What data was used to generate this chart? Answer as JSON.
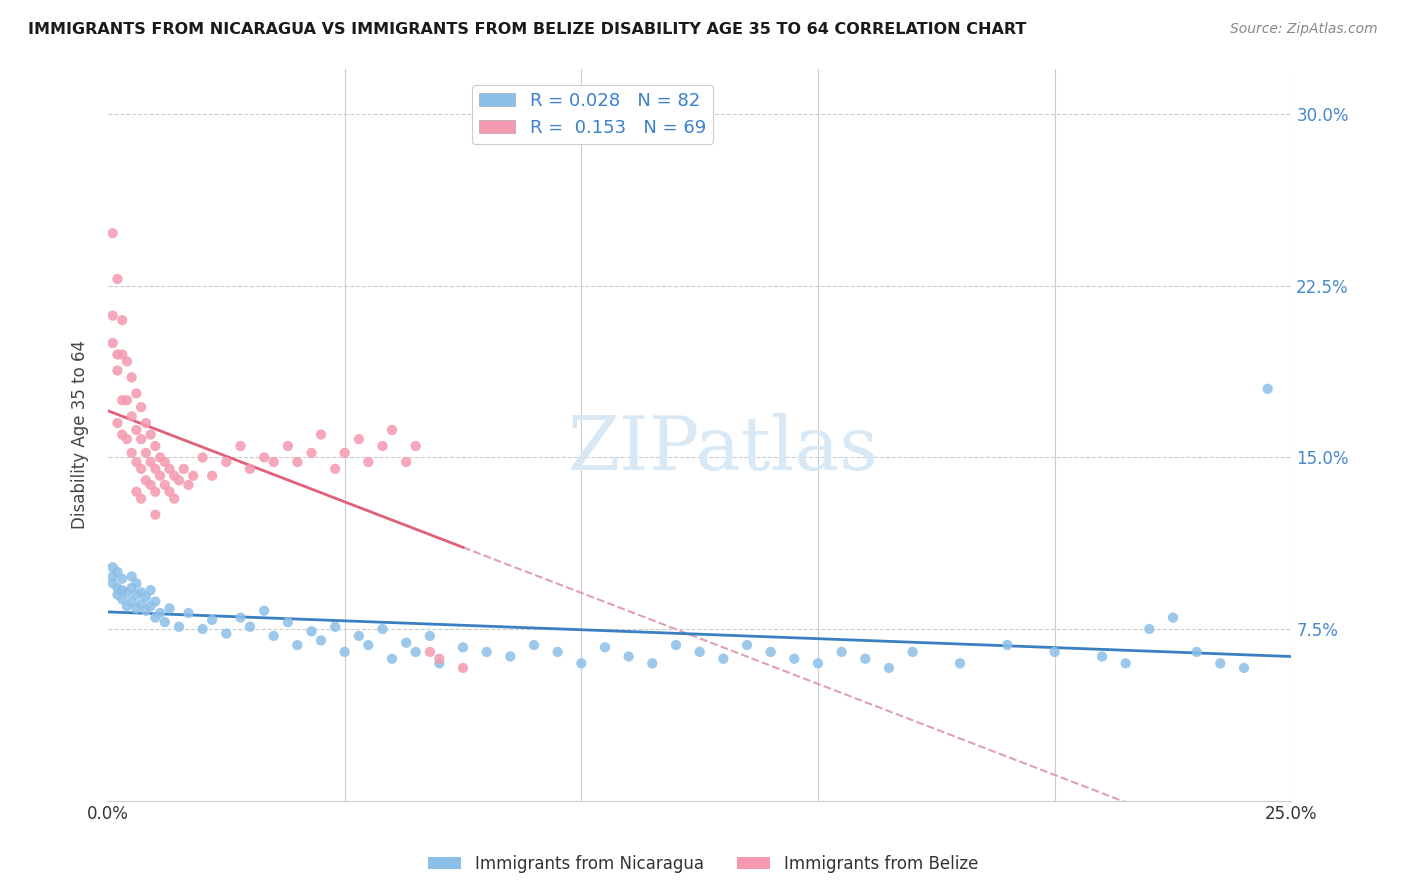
{
  "title": "IMMIGRANTS FROM NICARAGUA VS IMMIGRANTS FROM BELIZE DISABILITY AGE 35 TO 64 CORRELATION CHART",
  "source": "Source: ZipAtlas.com",
  "ylabel": "Disability Age 35 to 64",
  "xlim": [
    0.0,
    0.25
  ],
  "ylim": [
    0.0,
    0.32
  ],
  "xtick_positions": [
    0.0,
    0.05,
    0.1,
    0.15,
    0.2,
    0.25
  ],
  "xtick_labels": [
    "0.0%",
    "",
    "",
    "",
    "",
    "25.0%"
  ],
  "ytick_positions": [
    0.075,
    0.15,
    0.225,
    0.3
  ],
  "ytick_labels": [
    "7.5%",
    "15.0%",
    "22.5%",
    "30.0%"
  ],
  "nicaragua_color": "#8bbfe8",
  "belize_color": "#f599b0",
  "nicaragua_R": 0.028,
  "nicaragua_N": 82,
  "belize_R": 0.153,
  "belize_N": 69,
  "nic_line_color": "#3a7fc1",
  "bel_line_color": "#e0607a",
  "bel_dash_color": "#e0a0b0",
  "watermark_color": "#d8e8f5",
  "nicaragua_x": [
    0.001,
    0.001,
    0.001,
    0.002,
    0.002,
    0.002,
    0.003,
    0.003,
    0.003,
    0.004,
    0.004,
    0.005,
    0.005,
    0.005,
    0.006,
    0.006,
    0.006,
    0.007,
    0.007,
    0.008,
    0.008,
    0.009,
    0.009,
    0.01,
    0.01,
    0.011,
    0.012,
    0.013,
    0.015,
    0.017,
    0.02,
    0.022,
    0.025,
    0.028,
    0.03,
    0.033,
    0.035,
    0.038,
    0.04,
    0.043,
    0.045,
    0.048,
    0.05,
    0.053,
    0.055,
    0.058,
    0.06,
    0.063,
    0.065,
    0.068,
    0.07,
    0.075,
    0.08,
    0.085,
    0.09,
    0.095,
    0.1,
    0.105,
    0.11,
    0.115,
    0.12,
    0.125,
    0.13,
    0.135,
    0.14,
    0.145,
    0.15,
    0.155,
    0.16,
    0.165,
    0.17,
    0.18,
    0.19,
    0.2,
    0.21,
    0.215,
    0.22,
    0.225,
    0.23,
    0.235,
    0.24,
    0.245
  ],
  "nicaragua_y": [
    0.095,
    0.098,
    0.102,
    0.09,
    0.093,
    0.1,
    0.088,
    0.092,
    0.097,
    0.085,
    0.091,
    0.087,
    0.093,
    0.098,
    0.084,
    0.09,
    0.095,
    0.086,
    0.091,
    0.083,
    0.089,
    0.085,
    0.092,
    0.08,
    0.087,
    0.082,
    0.078,
    0.084,
    0.076,
    0.082,
    0.075,
    0.079,
    0.073,
    0.08,
    0.076,
    0.083,
    0.072,
    0.078,
    0.068,
    0.074,
    0.07,
    0.076,
    0.065,
    0.072,
    0.068,
    0.075,
    0.062,
    0.069,
    0.065,
    0.072,
    0.06,
    0.067,
    0.065,
    0.063,
    0.068,
    0.065,
    0.06,
    0.067,
    0.063,
    0.06,
    0.068,
    0.065,
    0.062,
    0.068,
    0.065,
    0.062,
    0.06,
    0.065,
    0.062,
    0.058,
    0.065,
    0.06,
    0.068,
    0.065,
    0.063,
    0.06,
    0.075,
    0.08,
    0.065,
    0.06,
    0.058,
    0.18
  ],
  "belize_x": [
    0.001,
    0.001,
    0.001,
    0.002,
    0.002,
    0.002,
    0.002,
    0.003,
    0.003,
    0.003,
    0.003,
    0.004,
    0.004,
    0.004,
    0.005,
    0.005,
    0.005,
    0.006,
    0.006,
    0.006,
    0.006,
    0.007,
    0.007,
    0.007,
    0.007,
    0.008,
    0.008,
    0.008,
    0.009,
    0.009,
    0.009,
    0.01,
    0.01,
    0.01,
    0.01,
    0.011,
    0.011,
    0.012,
    0.012,
    0.013,
    0.013,
    0.014,
    0.014,
    0.015,
    0.016,
    0.017,
    0.018,
    0.02,
    0.022,
    0.025,
    0.028,
    0.03,
    0.033,
    0.035,
    0.038,
    0.04,
    0.043,
    0.045,
    0.048,
    0.05,
    0.053,
    0.055,
    0.058,
    0.06,
    0.063,
    0.065,
    0.068,
    0.07,
    0.075
  ],
  "belize_y": [
    0.248,
    0.212,
    0.2,
    0.228,
    0.195,
    0.188,
    0.165,
    0.21,
    0.195,
    0.175,
    0.16,
    0.192,
    0.175,
    0.158,
    0.185,
    0.168,
    0.152,
    0.178,
    0.162,
    0.148,
    0.135,
    0.172,
    0.158,
    0.145,
    0.132,
    0.165,
    0.152,
    0.14,
    0.16,
    0.148,
    0.138,
    0.155,
    0.145,
    0.135,
    0.125,
    0.15,
    0.142,
    0.148,
    0.138,
    0.145,
    0.135,
    0.142,
    0.132,
    0.14,
    0.145,
    0.138,
    0.142,
    0.15,
    0.142,
    0.148,
    0.155,
    0.145,
    0.15,
    0.148,
    0.155,
    0.148,
    0.152,
    0.16,
    0.145,
    0.152,
    0.158,
    0.148,
    0.155,
    0.162,
    0.148,
    0.155,
    0.065,
    0.062,
    0.058
  ]
}
